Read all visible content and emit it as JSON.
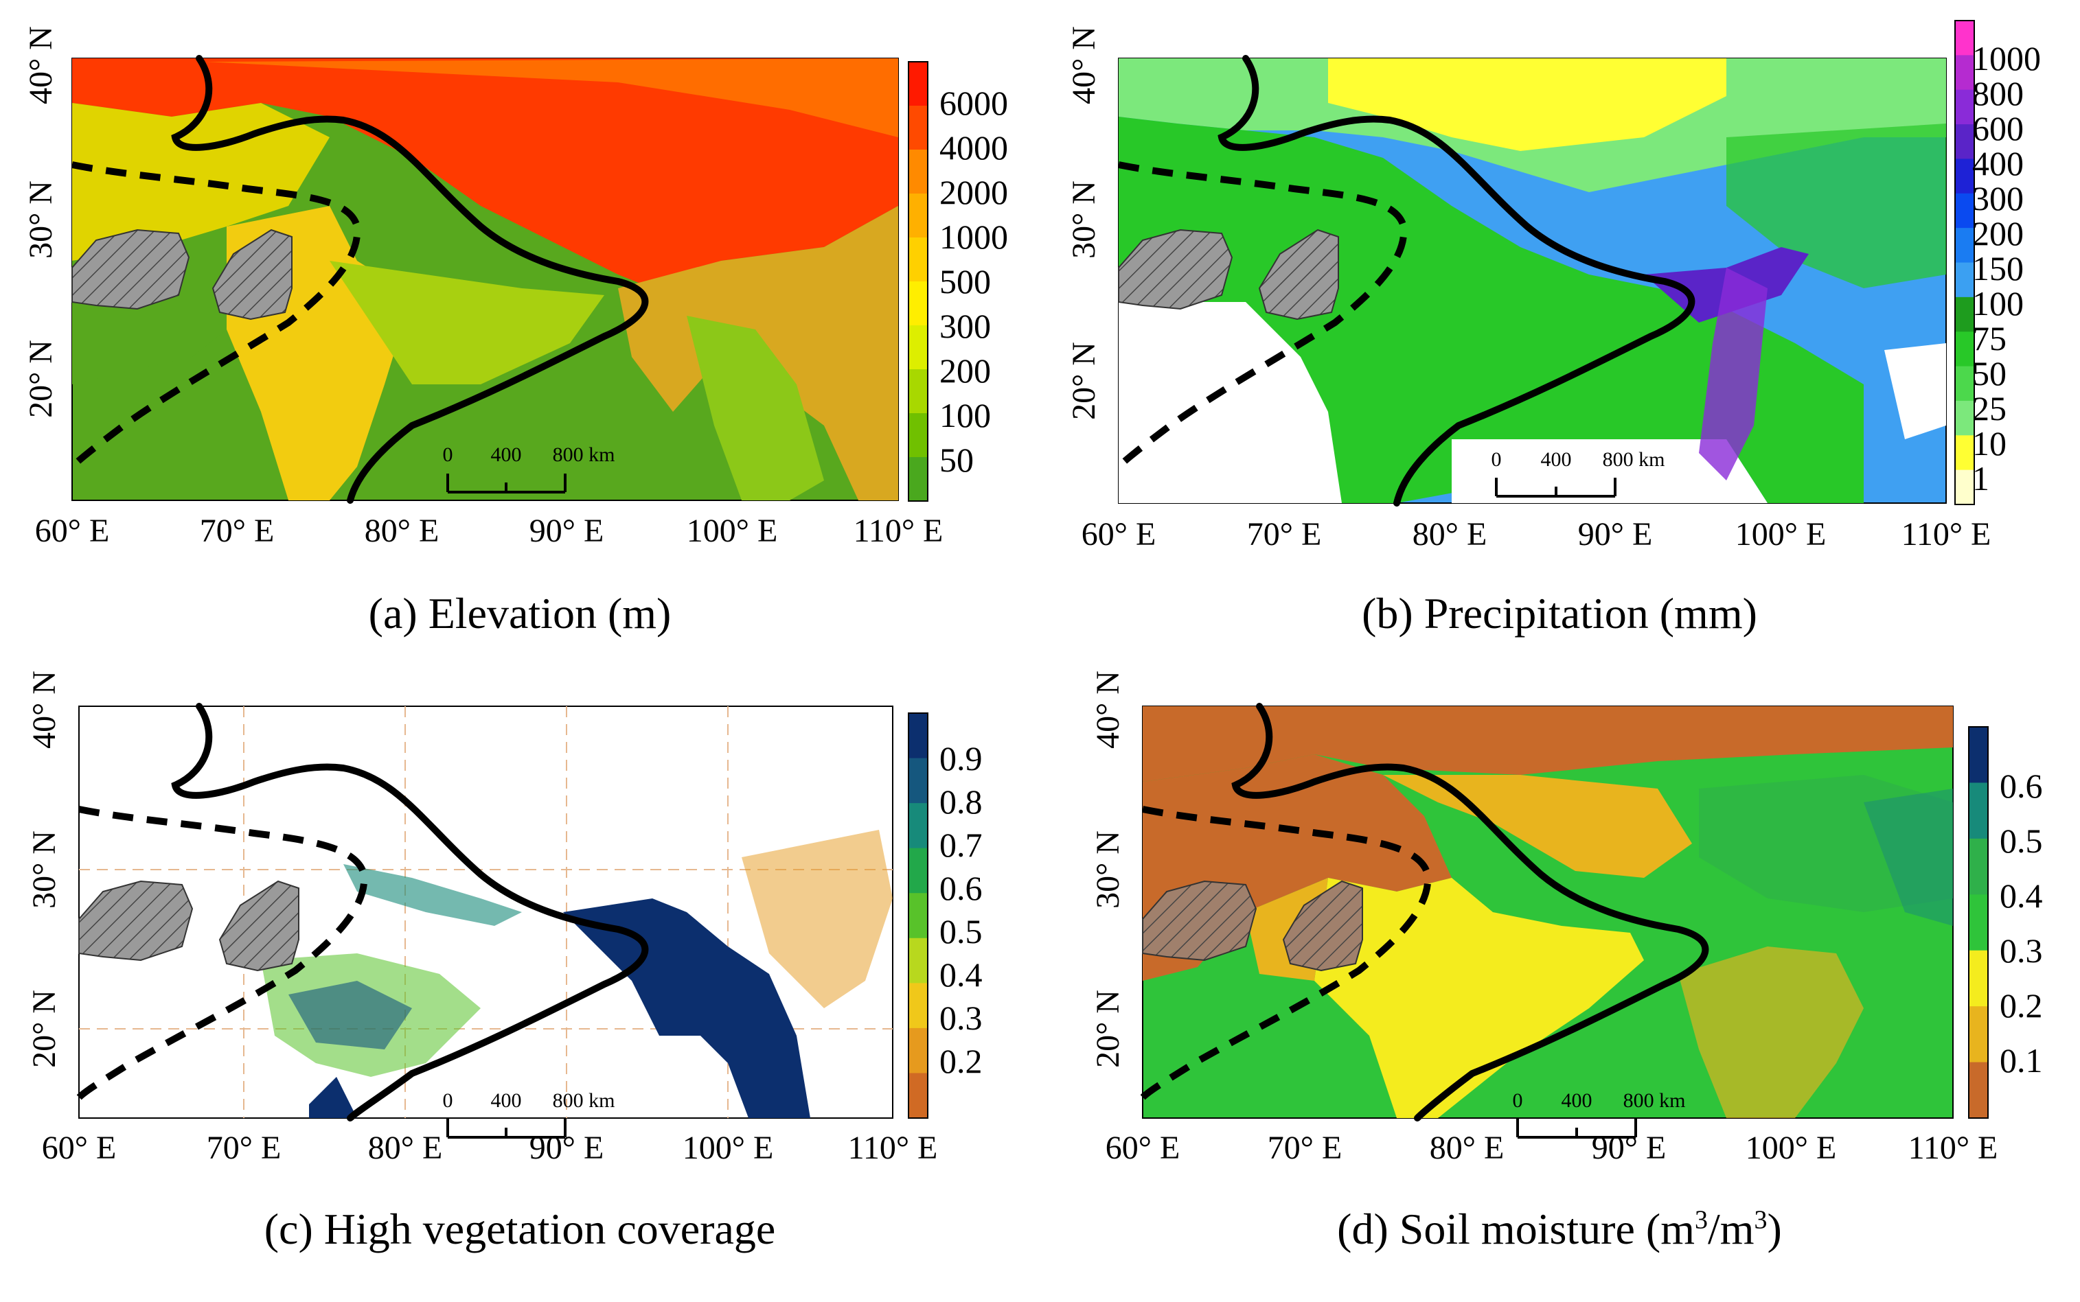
{
  "axes": {
    "lon_labels": [
      "60° E",
      "70° E",
      "80° E",
      "90° E",
      "100° E",
      "110° E"
    ],
    "lon_values": [
      60,
      70,
      80,
      90,
      100,
      110
    ],
    "lat_labels": [
      "40° N",
      "30° N",
      "20° N"
    ],
    "lat_values": [
      40,
      30,
      20
    ],
    "lon_range": [
      60,
      110
    ],
    "lat_range": [
      12,
      40.5
    ]
  },
  "scale_bar": {
    "labels": [
      "0",
      "400",
      "800 km"
    ]
  },
  "panels": [
    {
      "id": "a",
      "caption": "(a) Elevation (m)",
      "colorbar": {
        "labels": [
          "6000",
          "4000",
          "2000",
          "1000",
          "500",
          "300",
          "200",
          "100",
          "50"
        ],
        "colors": [
          "#ff1a00",
          "#ff4a00",
          "#ff8a00",
          "#ffb000",
          "#ffd000",
          "#ffee00",
          "#ddee00",
          "#a8d800",
          "#70c000",
          "#4aa81e"
        ]
      }
    },
    {
      "id": "b",
      "caption": "(b) Precipitation (mm)",
      "colorbar": {
        "labels": [
          "1000",
          "800",
          "600",
          "400",
          "300",
          "200",
          "150",
          "100",
          "75",
          "50",
          "25",
          "10",
          "1"
        ],
        "colors": [
          "#ff33cc",
          "#b52bd0",
          "#8a2bd8",
          "#5a24c8",
          "#1e22d6",
          "#0a4af0",
          "#1a7cf2",
          "#3ba0f2",
          "#1e9c1e",
          "#28c828",
          "#4cd84c",
          "#7ce87c",
          "#ffff33",
          "#ffffcc"
        ]
      }
    },
    {
      "id": "c",
      "caption": "(c) High vegetation coverage",
      "colorbar": {
        "labels": [
          "0.9",
          "0.8",
          "0.7",
          "0.6",
          "0.5",
          "0.4",
          "0.3",
          "0.2"
        ],
        "colors": [
          "#0c2f6e",
          "#15577e",
          "#178a7a",
          "#22a84a",
          "#58c22a",
          "#b8d81e",
          "#f0c81a",
          "#e69a1e",
          "#d06a24"
        ]
      }
    },
    {
      "id": "d",
      "caption_main": "(d) Soil moisture (m",
      "caption_exp1": "3",
      "caption_mid": "/m",
      "caption_exp2": "3",
      "caption_end": ")",
      "colorbar": {
        "labels": [
          "0.6",
          "0.5",
          "0.4",
          "0.3",
          "0.2",
          "0.1"
        ],
        "colors": [
          "#0c2f6e",
          "#178a7a",
          "#2fb04a",
          "#2fc43a",
          "#f4ec1e",
          "#e8b41e",
          "#c86a2a"
        ]
      }
    }
  ]
}
